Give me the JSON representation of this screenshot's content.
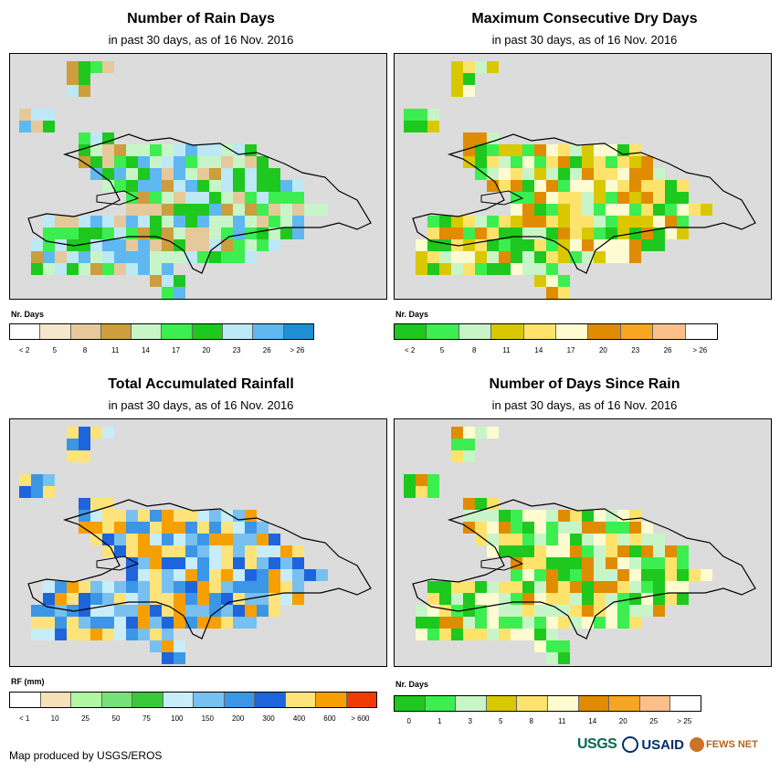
{
  "panels": [
    {
      "title": "Number of Rain Days",
      "subtitle": "in past 30 days, as of 16 Nov. 2016",
      "legend_title": "Nr. Days",
      "legend_colors": [
        "#ffffff",
        "#f5e6cc",
        "#e5c99a",
        "#cc9e3e",
        "#c8f5c8",
        "#3cee50",
        "#1ec81e",
        "#bde8f5",
        "#5fb8f0",
        "#1e8fd2"
      ],
      "legend_labels": [
        "< 2",
        "5",
        "8",
        "11",
        "14",
        "17",
        "20",
        "23",
        "26",
        "> 26"
      ],
      "grid_palette": [
        "#e5c99a",
        "#cc9e3e",
        "#c8f5c8",
        "#3cee50",
        "#1ec81e",
        "#bde8f5",
        "#5fb8f0"
      ]
    },
    {
      "title": "Maximum Consecutive Dry Days",
      "subtitle": "in past 30 days, as of 16 Nov. 2016",
      "legend_title": "Nr. Days",
      "legend_colors": [
        "#1ec81e",
        "#3cee50",
        "#c8f5c8",
        "#d9c800",
        "#fde36c",
        "#fffbd0",
        "#e08c00",
        "#f5a623",
        "#fbc08a",
        "#ffffff"
      ],
      "legend_labels": [
        "< 2",
        "5",
        "8",
        "11",
        "14",
        "17",
        "20",
        "23",
        "26",
        "> 26"
      ],
      "grid_palette": [
        "#1ec81e",
        "#3cee50",
        "#c8f5c8",
        "#d9c800",
        "#fde36c",
        "#fffbd0",
        "#e08c00"
      ]
    },
    {
      "title": "Total Accumulated Rainfall",
      "subtitle": "in past 30 days, as of 16 Nov. 2016",
      "legend_title": "RF (mm)",
      "legend_colors": [
        "#ffffff",
        "#f5e0b8",
        "#b0f5a0",
        "#78e078",
        "#3cc83c",
        "#c8ecf8",
        "#78c0f0",
        "#3c96e6",
        "#1e64dc",
        "#fde37a",
        "#f5a000",
        "#f03c00"
      ],
      "legend_labels": [
        "< 1",
        "10",
        "25",
        "50",
        "75",
        "100",
        "150",
        "200",
        "300",
        "400",
        "600",
        "> 600"
      ],
      "grid_palette": [
        "#78c0f0",
        "#3c96e6",
        "#1e64dc",
        "#fde37a",
        "#f5a000",
        "#c8ecf8"
      ]
    },
    {
      "title": "Number of Days Since Rain",
      "subtitle": "in past 30 days, as of 16 Nov. 2016",
      "legend_title": "Nr. Days",
      "legend_colors": [
        "#1ec81e",
        "#3cee50",
        "#c8f5c8",
        "#d9c800",
        "#fde36c",
        "#fffbd0",
        "#e08c00",
        "#f5a623",
        "#fbc08a",
        "#ffffff"
      ],
      "legend_labels": [
        "0",
        "1",
        "3",
        "5",
        "8",
        "11",
        "14",
        "20",
        "25",
        "> 25"
      ],
      "grid_palette": [
        "#1ec81e",
        "#3cee50",
        "#c8f5c8",
        "#fffbd0",
        "#fde36c",
        "#e08c00"
      ]
    }
  ],
  "credit": "Map produced by USGS/EROS",
  "logos": {
    "usgs": "USGS",
    "usaid": "USAID",
    "fews": "FEWS NET"
  }
}
